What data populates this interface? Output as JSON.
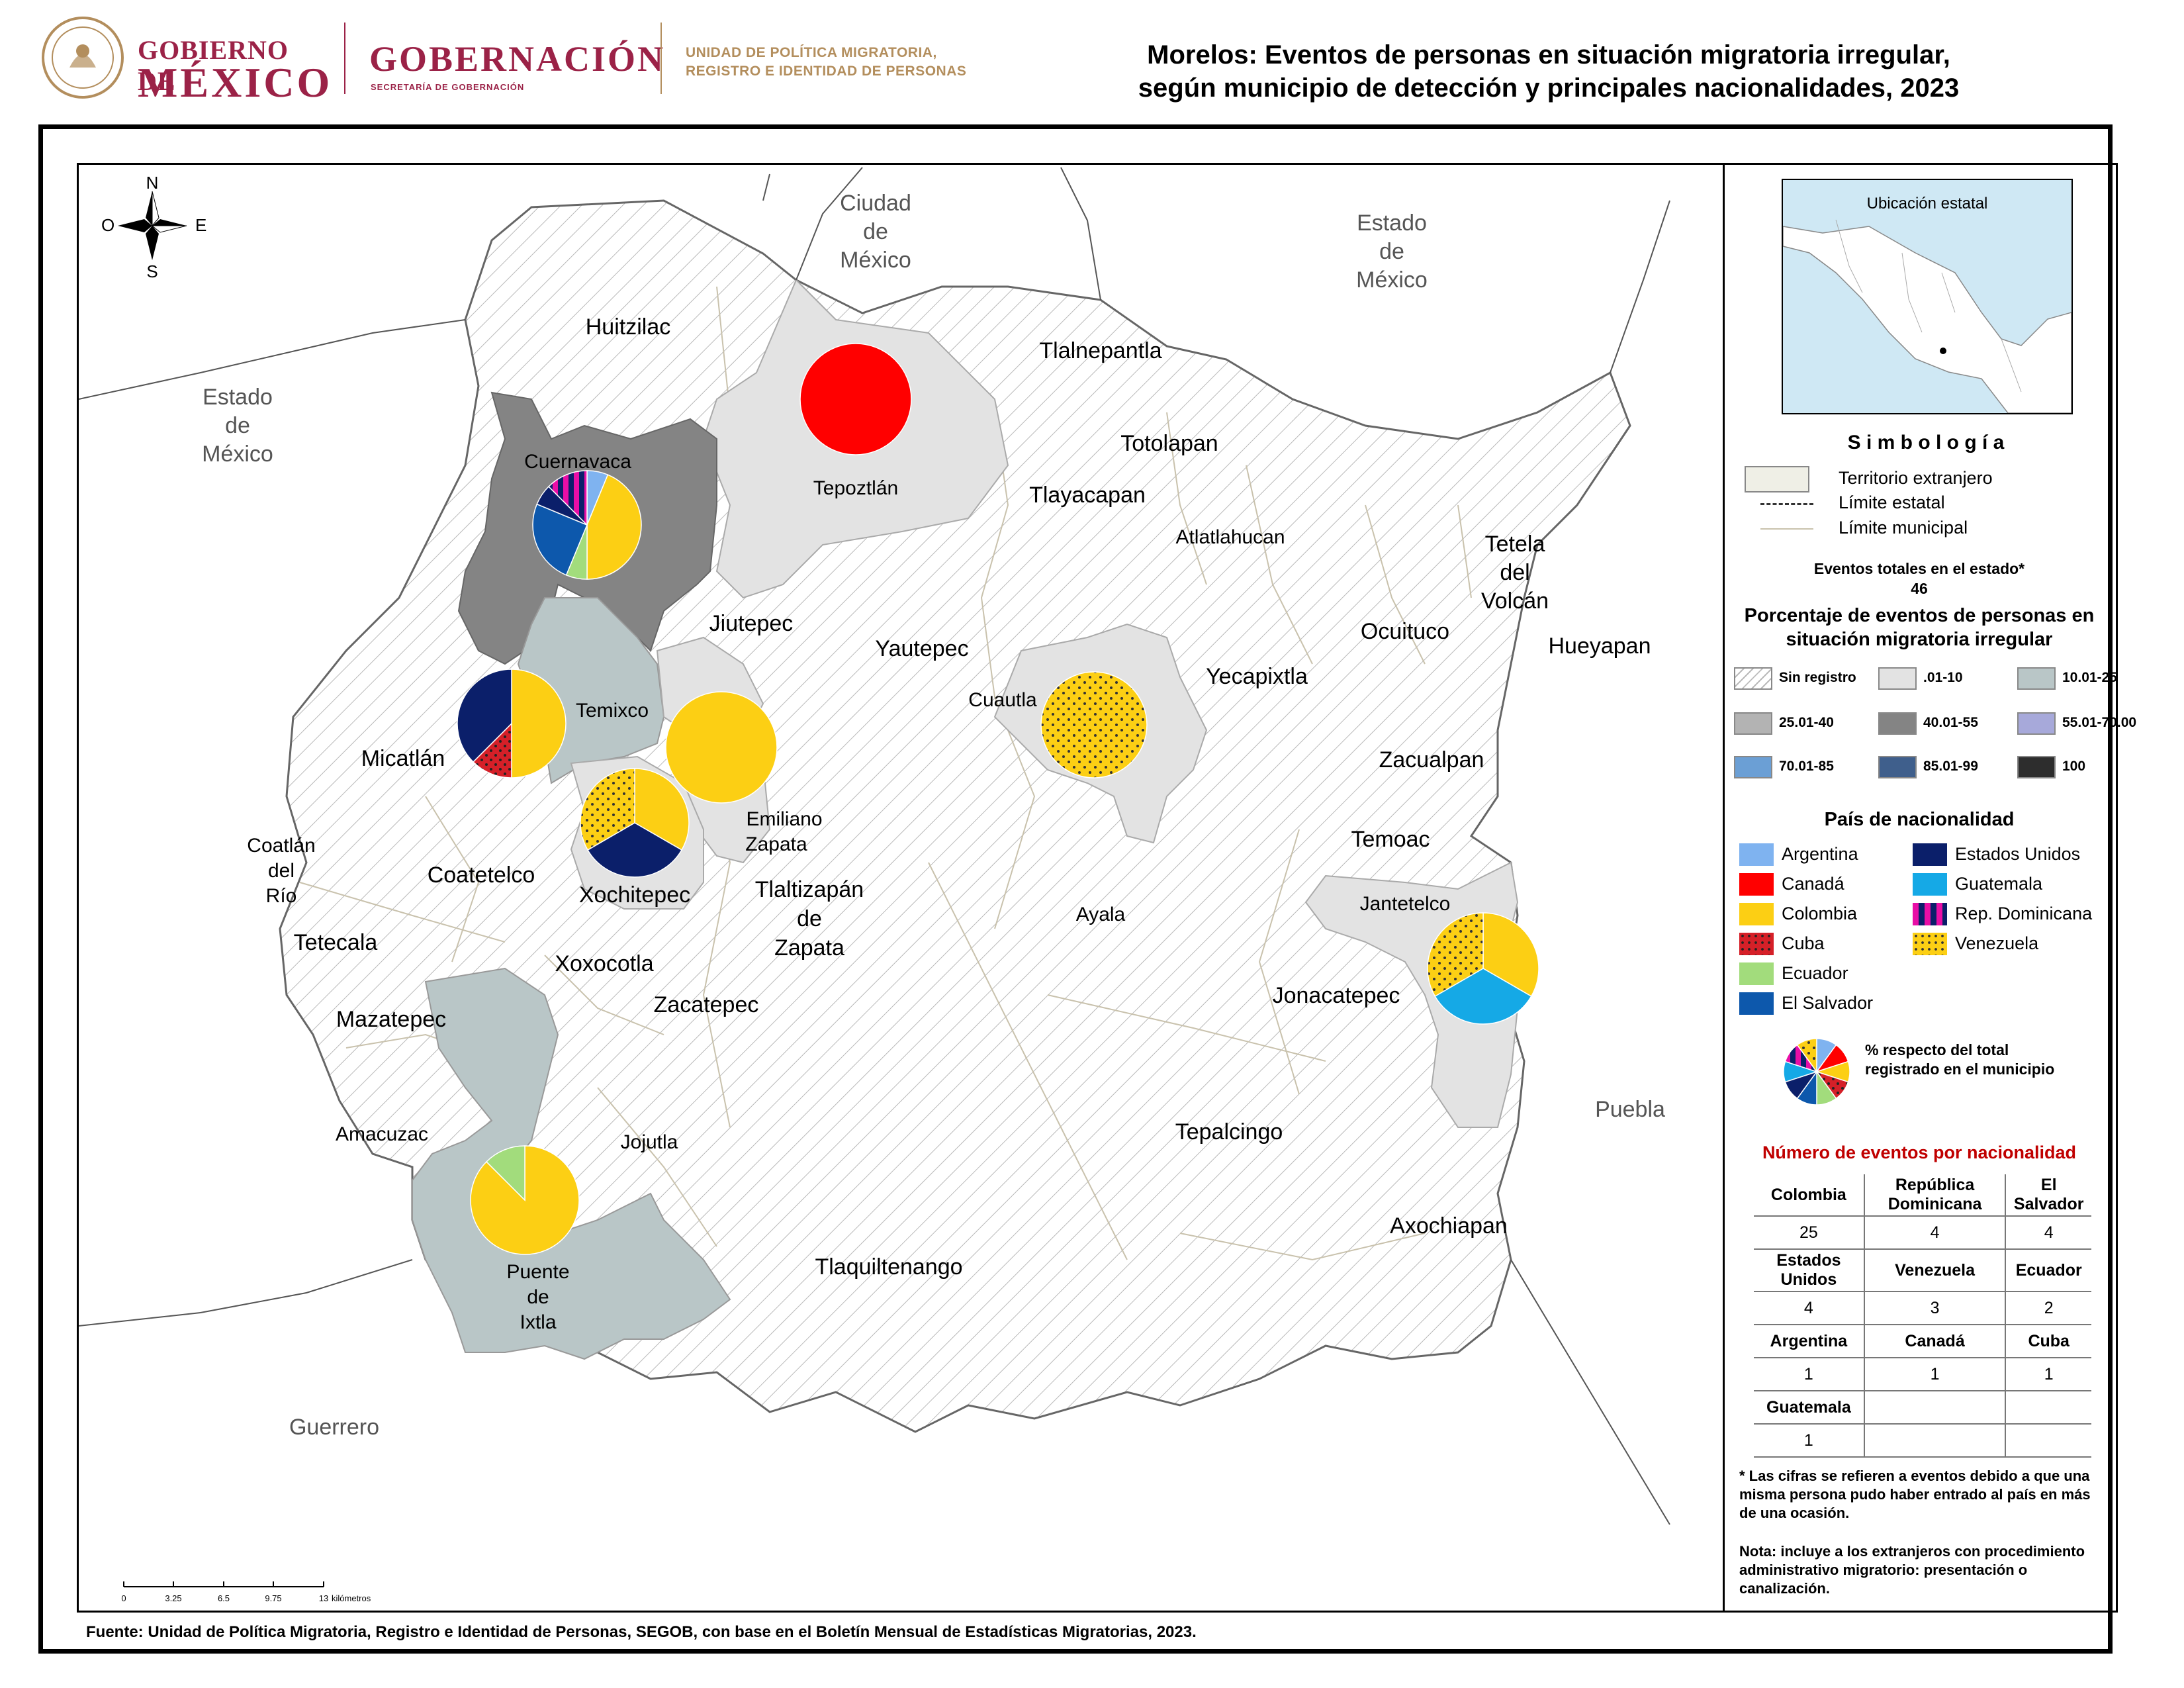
{
  "header": {
    "gob_line1": "GOBIERNO DE",
    "gob_line2": "MÉXICO",
    "gobernacion": "GOBERNACIÓN",
    "gobernacion_sub": "SECRETARÍA DE GOBERNACIÓN",
    "upm_line1": "UNIDAD DE POLÍTICA MIGRATORIA,",
    "upm_line2": "REGISTRO E IDENTIDAD DE PERSONAS",
    "title_line1": "Morelos: Eventos de personas en situación migratoria irregular,",
    "title_line2": "según municipio de detección y principales nacionalidades, 2023",
    "brand_color": "#9b2247",
    "gold_color": "#b38e5d"
  },
  "map": {
    "compass": {
      "n": "N",
      "s": "S",
      "e": "E",
      "o": "O"
    },
    "neighbors": {
      "cdmx": [
        "Ciudad",
        "de",
        "México"
      ],
      "edomex_ne": [
        "Estado",
        "de",
        "México"
      ],
      "edomex_w": [
        "Estado",
        "de",
        "México"
      ],
      "puebla": "Puebla",
      "guerrero": "Guerrero"
    },
    "municipios": {
      "huitzilac": "Huitzilac",
      "tepoztlan": "Tepoztlán",
      "tlalnepantla": "Tlalnepantla",
      "totolapan": "Totolapan",
      "tlayacapan": "Tlayacapan",
      "atlatlahucan": "Atlatlahucan",
      "cuernavaca": "Cuernavaca",
      "jiutepec": "Jiutepec",
      "yautepec": "Yautepec",
      "tetela": [
        "Tetela",
        "del",
        "Volcán"
      ],
      "ocuituco": "Ocuituco",
      "hueyapan": "Hueyapan",
      "yecapixtla": "Yecapixtla",
      "cuautla": "Cuautla",
      "temixco": "Temixco",
      "micatlan": "Micatlán",
      "zacualpan": "Zacualpan",
      "emiliano": [
        "Emiliano",
        "Zapata"
      ],
      "coatlan": [
        "Coatlán",
        "del",
        "Río"
      ],
      "coatetelco": "Coatetelco",
      "xochitepec": "Xochitepec",
      "tlaltizapan": [
        "Tlaltizapán",
        "de",
        "Zapata"
      ],
      "temoac": "Temoac",
      "jantetelco": "Jantetelco",
      "ayala": "Ayala",
      "tetecala": "Tetecala",
      "xoxocotla": "Xoxocotla",
      "jonacatepec": "Jonacatepec",
      "zacatepec": "Zacatepec",
      "mazatepec": "Mazatepec",
      "amacuzac": "Amacuzac",
      "jojutla": "Jojutla",
      "tepalcingo": "Tepalcingo",
      "axochiapan": "Axochiapan",
      "puente": [
        "Puente",
        "de",
        "Ixtla"
      ],
      "tlaquiltenango": "Tlaquiltenango"
    },
    "scale": {
      "ticks": [
        "0",
        "3.25",
        "6.5",
        "9.75",
        "13"
      ],
      "unit": "kilómetros"
    }
  },
  "legend": {
    "inset_title": "Ubicación estatal",
    "simbologia": "S i m b o l o g í a",
    "symbols": [
      "Territorio extranjero",
      "Límite estatal",
      "Límite municipal"
    ],
    "total_label": "Eventos totales en el estado*",
    "total_value": "46",
    "pct_title_1": "Porcentaje de eventos de personas en",
    "pct_title_2": "situación migratoria irregular",
    "classes": [
      {
        "label": "Sin registro",
        "color": "hatch"
      },
      {
        "label": ".01-10",
        "color": "#e3e3e3"
      },
      {
        "label": "10.01-25",
        "color": "#b9c6c7"
      },
      {
        "label": "25.01-40",
        "color": "#b3b3b3"
      },
      {
        "label": "40.01-55",
        "color": "#848484"
      },
      {
        "label": "55.01-70.00",
        "color": "#a7a9da"
      },
      {
        "label": "70.01-85",
        "color": "#6b9fd5"
      },
      {
        "label": "85.01-99",
        "color": "#3f5f8c"
      },
      {
        "label": "100",
        "color": "#2d2d2d"
      }
    ],
    "nat_title": "País de nacionalidad",
    "nationalities": [
      {
        "label": "Argentina",
        "color": "#7fb3f0"
      },
      {
        "label": "Canadá",
        "color": "#ff0000"
      },
      {
        "label": "Colombia",
        "color": "#fccf14"
      },
      {
        "label": "Cuba",
        "color": "#d52028"
      },
      {
        "label": "Ecuador",
        "color": "#a2dc7c"
      },
      {
        "label": "El Salvador",
        "color": "#0d58ac"
      },
      {
        "label": "Estados Unidos",
        "color": "#0b1f6a"
      },
      {
        "label": "Guatemala",
        "color": "#15a9e6"
      },
      {
        "label": "Rep. Dominicana",
        "color": "#e80ea6"
      },
      {
        "label": "Venezuela",
        "color": "#fccf14"
      }
    ],
    "pie_note_1": "%  respecto del total",
    "pie_note_2": "registrado en el municipio",
    "table_title": "Número de eventos por nacionalidad",
    "table": [
      [
        {
          "h": "Colombia"
        },
        {
          "h": "República Dominicana"
        },
        {
          "h": "El Salvador"
        }
      ],
      [
        "25",
        "4",
        "4"
      ],
      [
        {
          "h": "Estados Unidos"
        },
        {
          "h": "Venezuela"
        },
        {
          "h": "Ecuador"
        }
      ],
      [
        "4",
        "3",
        "2"
      ],
      [
        {
          "h": "Argentina"
        },
        {
          "h": "Canadá"
        },
        {
          "h": "Cuba"
        }
      ],
      [
        "1",
        "1",
        "1"
      ],
      [
        {
          "h": "Guatemala"
        },
        {
          "h": ""
        },
        {
          "h": ""
        }
      ],
      [
        "1",
        "",
        ""
      ]
    ],
    "note1": "* Las cifras se refieren a eventos debido a que una misma persona pudo haber entrado al país en más de una ocasión.",
    "note2": "Nota: incluye a los extranjeros con procedimiento administrativo migratorio: presentación o canalización."
  },
  "footer": {
    "fuente": "Fuente: Unidad de Política Migratoria, Registro e Identidad de Personas, SEGOB, con base en el Boletín Mensual de Estadísticas Migratorias, 2023."
  },
  "pies": [
    {
      "name": "cuernavaca",
      "slices": [
        {
          "nat": "Argentina",
          "pct": 6.25
        },
        {
          "nat": "Colombia",
          "pct": 43.75
        },
        {
          "nat": "Ecuador",
          "pct": 6.25
        },
        {
          "nat": "El Salvador",
          "pct": 25
        },
        {
          "nat": "Estados Unidos",
          "pct": 6.25
        },
        {
          "nat": "Rep. Dominicana",
          "pct": 12.5
        }
      ]
    },
    {
      "name": "tepoztlan",
      "slices": [
        {
          "nat": "Canadá",
          "pct": 100
        }
      ]
    },
    {
      "name": "micatlan",
      "slices": [
        {
          "nat": "Colombia",
          "pct": 50
        },
        {
          "nat": "Cuba",
          "pct": 12.5
        },
        {
          "nat": "Estados Unidos",
          "pct": 37.5
        }
      ]
    },
    {
      "name": "emiliano",
      "slices": [
        {
          "nat": "Colombia",
          "pct": 100
        }
      ]
    },
    {
      "name": "xochitepec",
      "slices": [
        {
          "nat": "Colombia",
          "pct": 33.33
        },
        {
          "nat": "Estados Unidos",
          "pct": 33.33
        },
        {
          "nat": "Venezuela",
          "pct": 33.34
        }
      ]
    },
    {
      "name": "cuautla",
      "slices": [
        {
          "nat": "Venezuela",
          "pct": 100
        }
      ]
    },
    {
      "name": "jantetelco",
      "slices": [
        {
          "nat": "Colombia",
          "pct": 33.33
        },
        {
          "nat": "Guatemala",
          "pct": 33.33
        },
        {
          "nat": "Venezuela",
          "pct": 33.34
        }
      ]
    },
    {
      "name": "puente",
      "slices": [
        {
          "nat": "Colombia",
          "pct": 87.5
        },
        {
          "nat": "Ecuador",
          "pct": 12.5
        }
      ]
    }
  ]
}
